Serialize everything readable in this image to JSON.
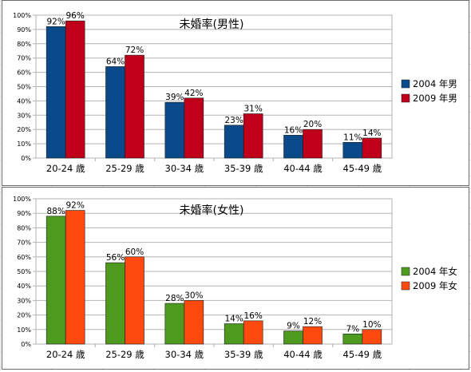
{
  "chart_data": [
    {
      "type": "bar",
      "title": "未婚率(男性)",
      "categories": [
        "20-24 歳",
        "25-29 歳",
        "30-34 歳",
        "35-39 歳",
        "40-44 歳",
        "45-49 歳"
      ],
      "series": [
        {
          "name": "2004 年男",
          "values": [
            92,
            64,
            39,
            23,
            16,
            11
          ],
          "color": "#0b4a8a"
        },
        {
          "name": "2009 年男",
          "values": [
            96,
            72,
            42,
            31,
            20,
            14
          ],
          "color": "#c0001a"
        }
      ],
      "data_labels": [
        [
          "92%",
          "64%",
          "39%",
          "23%",
          "16%",
          "11%"
        ],
        [
          "96%",
          "72%",
          "42%",
          "31%",
          "20%",
          "14%"
        ]
      ],
      "ylim": [
        0,
        100
      ],
      "yticks": [
        "0%",
        "10%",
        "20%",
        "30%",
        "40%",
        "50%",
        "60%",
        "70%",
        "80%",
        "90%",
        "100%"
      ],
      "grid": true,
      "legend": "right"
    },
    {
      "type": "bar",
      "title": "未婚率(女性)",
      "categories": [
        "20-24 歳",
        "25-29 歳",
        "30-34 歳",
        "35-39 歳",
        "40-44 歳",
        "45-49 歳"
      ],
      "series": [
        {
          "name": "2004 年女",
          "values": [
            88,
            56,
            28,
            14,
            9,
            7
          ],
          "color": "#4e9a1f"
        },
        {
          "name": "2009 年女",
          "values": [
            92,
            60,
            30,
            16,
            12,
            10
          ],
          "color": "#ff4a0f"
        }
      ],
      "data_labels": [
        [
          "88%",
          "56%",
          "28%",
          "14%",
          "9%",
          "7%"
        ],
        [
          "92%",
          "60%",
          "30%",
          "16%",
          "12%",
          "10%"
        ]
      ],
      "ylim": [
        0,
        100
      ],
      "yticks": [
        "0%",
        "10%",
        "20%",
        "30%",
        "40%",
        "50%",
        "60%",
        "70%",
        "80%",
        "90%",
        "100%"
      ],
      "grid": true,
      "legend": "right"
    }
  ]
}
